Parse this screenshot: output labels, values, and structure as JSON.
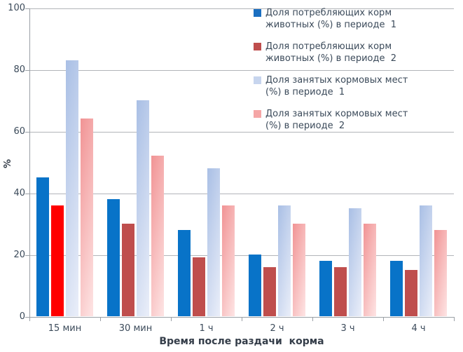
{
  "chart_data": {
    "type": "bar",
    "title": "",
    "xlabel": "Время после раздачи  корма",
    "ylabel": "%",
    "ylim": [
      0,
      100
    ],
    "yticks": [
      0,
      20,
      40,
      60,
      80,
      100
    ],
    "grid": true,
    "legend_position": "top-right-inside",
    "categories": [
      "15 мин",
      "30 мин",
      "1 ч",
      "2 ч",
      "3 ч",
      "4 ч"
    ],
    "series": [
      {
        "name": "Доля потребляющих корм животных (%) в периоде 1",
        "values": [
          45,
          38,
          28,
          20,
          18,
          18
        ],
        "fill": {
          "type": "solid",
          "color": "#0873c8"
        },
        "swatch": "#1b6fc1"
      },
      {
        "name": "Доля потребляющих корм животных (%) в периоде 2",
        "values": [
          36,
          30,
          19,
          16,
          16,
          15
        ],
        "fill": {
          "type": "solid",
          "color": "#bf4e4d"
        },
        "swatch": "#bf4e4d"
      },
      {
        "name": "Доля занятых кормовых мест (%) в периоде 1",
        "values": [
          83,
          70,
          48,
          36,
          35,
          36
        ],
        "fill": {
          "type": "gradient",
          "from": "#a9bfe5",
          "to": "#e7ecf8"
        },
        "swatch": "#c7d5ee"
      },
      {
        "name": "Доля занятых кормовых мест (%) в периоде 2",
        "values": [
          64,
          52,
          36,
          30,
          30,
          28
        ],
        "fill": {
          "type": "gradient",
          "from": "#f19394",
          "to": "#fde1e1"
        },
        "swatch": "#f5a6a6"
      }
    ],
    "point_overrides": [
      {
        "series": 1,
        "point": 0,
        "color": "#ff0000"
      }
    ]
  },
  "legend": {
    "items": [
      {
        "lines": [
          "Доля потребляющих корм",
          "животных (%) в периоде  1"
        ]
      },
      {
        "lines": [
          "Доля потребляющих корм",
          "животных (%) в периоде  2"
        ]
      },
      {
        "lines": [
          "Доля занятых кормовых мест",
          "(%) в периоде  1"
        ]
      },
      {
        "lines": [
          "Доля занятых кормовых мест",
          "(%) в периоде  2"
        ]
      }
    ]
  },
  "colors": {
    "axis": "#9aa0a6",
    "grid": "#b2b5b9",
    "text": "#3b4a5a",
    "background": "#ffffff"
  }
}
